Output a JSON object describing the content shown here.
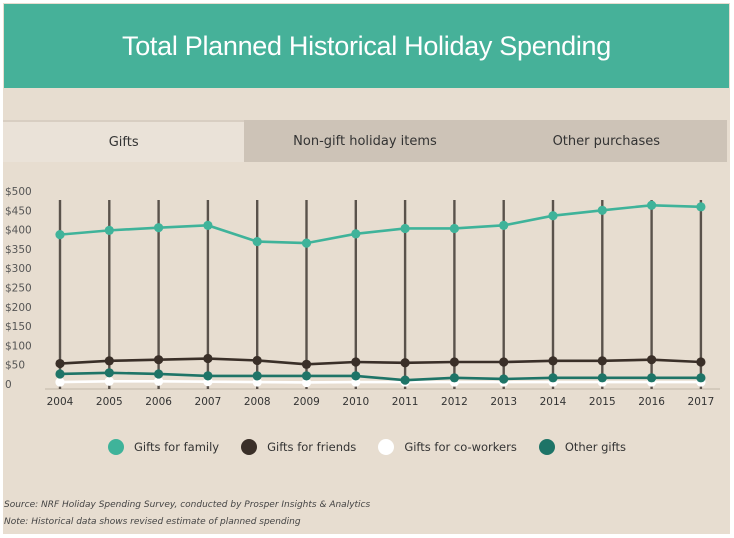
{
  "title": "Total Planned Historical Holiday Spending",
  "tabs": [
    {
      "label": "Gifts",
      "active": true
    },
    {
      "label": "Non-gift holiday items",
      "active": false
    },
    {
      "label": "Other purchases",
      "active": false
    }
  ],
  "colors": {
    "header": "#46b199",
    "background": "#e7ddd0",
    "family": "#3fb39a",
    "friends": "#3a2f28",
    "coworkers": "#ffffff",
    "other": "#1e7467"
  },
  "chart_data": {
    "type": "line",
    "x": [
      "2004",
      "2005",
      "2006",
      "2007",
      "2008",
      "2009",
      "2010",
      "2011",
      "2012",
      "2013",
      "2014",
      "2015",
      "2016",
      "2017"
    ],
    "y_ticks": [
      "$500",
      "$450",
      "$400",
      "$350",
      "$300",
      "$250",
      "$200",
      "$150",
      "$100",
      "$50",
      "0"
    ],
    "ylim": [
      0,
      500
    ],
    "grid": "vertical lines at each year",
    "legend_position": "bottom",
    "series": [
      {
        "name": "Gifts for family",
        "color": "#3fb39a",
        "values": [
          387,
          398,
          405,
          411,
          369,
          365,
          389,
          403,
          403,
          411,
          436,
          450,
          463,
          459
        ]
      },
      {
        "name": "Gifts for friends",
        "color": "#3a2f28",
        "values": [
          53,
          60,
          63,
          66,
          61,
          51,
          57,
          55,
          57,
          57,
          60,
          60,
          63,
          57
        ]
      },
      {
        "name": "Gifts for co-workers",
        "color": "#ffffff",
        "values": [
          5,
          7,
          7,
          6,
          5,
          4,
          5,
          5,
          5,
          5,
          5,
          5,
          5,
          5
        ]
      },
      {
        "name": "Other gifts",
        "color": "#1e7467",
        "values": [
          26,
          29,
          26,
          21,
          21,
          21,
          21,
          10,
          16,
          13,
          16,
          16,
          16,
          16
        ]
      }
    ]
  },
  "notes": [
    "Source:  NRF Holiday Spending Survey, conducted by Prosper Insights & Analytics",
    "Note: Historical data shows revised estimate of planned spending"
  ]
}
